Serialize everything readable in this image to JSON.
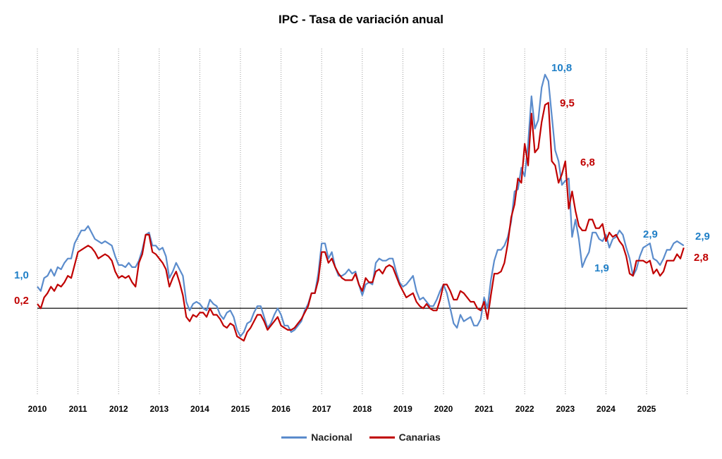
{
  "chart_data": {
    "type": "line",
    "title": "IPC - Tasa de variación anual",
    "xlabel": "",
    "ylabel": "",
    "x_start": "2010-01",
    "frequency": "monthly",
    "x_ticks": [
      "2010",
      "2011",
      "2012",
      "2013",
      "2014",
      "2015",
      "2016",
      "2017",
      "2018",
      "2019",
      "2020",
      "2021",
      "2022",
      "2023",
      "2024",
      "2025"
    ],
    "ylim": [
      -4,
      12
    ],
    "zero_line": true,
    "grid": "vertical dotted at years",
    "legend_position": "bottom",
    "series": [
      {
        "name": "Nacional",
        "color": "#5b8ccc",
        "values": [
          1.0,
          0.8,
          1.4,
          1.5,
          1.8,
          1.5,
          1.9,
          1.8,
          2.1,
          2.3,
          2.3,
          3.0,
          3.3,
          3.6,
          3.6,
          3.8,
          3.5,
          3.2,
          3.1,
          3.0,
          3.1,
          3.0,
          2.9,
          2.4,
          2.0,
          2.0,
          1.9,
          2.1,
          1.9,
          1.9,
          2.2,
          2.7,
          3.4,
          3.5,
          2.9,
          2.9,
          2.7,
          2.8,
          2.4,
          1.4,
          1.7,
          2.1,
          1.8,
          1.5,
          0.3,
          -0.1,
          0.2,
          0.3,
          0.2,
          0.0,
          -0.1,
          0.4,
          0.2,
          0.1,
          -0.3,
          -0.5,
          -0.2,
          -0.1,
          -0.4,
          -1.0,
          -1.3,
          -1.1,
          -0.7,
          -0.6,
          -0.2,
          0.1,
          0.1,
          -0.4,
          -0.9,
          -0.7,
          -0.3,
          0.0,
          -0.3,
          -0.8,
          -0.8,
          -1.1,
          -1.0,
          -0.8,
          -0.6,
          -0.1,
          0.2,
          0.7,
          0.7,
          1.6,
          3.0,
          3.0,
          2.3,
          2.6,
          1.9,
          1.5,
          1.5,
          1.6,
          1.8,
          1.6,
          1.7,
          1.1,
          0.6,
          1.1,
          1.2,
          1.1,
          2.1,
          2.3,
          2.2,
          2.2,
          2.3,
          2.3,
          1.7,
          1.2,
          1.0,
          1.1,
          1.3,
          1.5,
          0.8,
          0.4,
          0.5,
          0.3,
          0.1,
          0.1,
          0.4,
          0.8,
          1.1,
          0.7,
          0.0,
          -0.7,
          -0.9,
          -0.3,
          -0.6,
          -0.5,
          -0.4,
          -0.8,
          -0.8,
          -0.5,
          0.5,
          0.0,
          1.3,
          2.2,
          2.7,
          2.7,
          2.9,
          3.3,
          4.0,
          5.4,
          5.5,
          6.5,
          6.1,
          7.6,
          9.8,
          8.3,
          8.7,
          10.2,
          10.8,
          10.5,
          8.9,
          7.3,
          6.8,
          5.7,
          5.9,
          6.0,
          3.3,
          4.1,
          3.2,
          1.9,
          2.3,
          2.6,
          3.5,
          3.5,
          3.2,
          3.1,
          3.4,
          2.8,
          3.2,
          3.3,
          3.6,
          3.4,
          2.8,
          2.3,
          1.5,
          1.8,
          2.4,
          2.8,
          2.9,
          3.0,
          2.3,
          2.2,
          2.0,
          2.3,
          2.7,
          2.7,
          3.0,
          3.1,
          3.0,
          2.9
        ]
      },
      {
        "name": "Canarias",
        "color": "#c00000",
        "values": [
          0.2,
          0.0,
          0.5,
          0.7,
          1.0,
          0.8,
          1.1,
          1.0,
          1.2,
          1.5,
          1.4,
          2.0,
          2.6,
          2.7,
          2.8,
          2.9,
          2.8,
          2.6,
          2.3,
          2.4,
          2.5,
          2.4,
          2.2,
          1.7,
          1.4,
          1.5,
          1.4,
          1.5,
          1.2,
          1.0,
          2.1,
          2.5,
          3.4,
          3.4,
          2.6,
          2.5,
          2.3,
          2.1,
          1.8,
          1.0,
          1.4,
          1.7,
          1.2,
          0.6,
          -0.4,
          -0.6,
          -0.3,
          -0.4,
          -0.2,
          -0.2,
          -0.4,
          0.0,
          -0.3,
          -0.3,
          -0.5,
          -0.8,
          -0.9,
          -0.7,
          -0.8,
          -1.3,
          -1.4,
          -1.5,
          -1.1,
          -0.9,
          -0.6,
          -0.3,
          -0.3,
          -0.6,
          -1.0,
          -0.8,
          -0.6,
          -0.4,
          -0.8,
          -0.9,
          -1.0,
          -1.0,
          -0.9,
          -0.7,
          -0.5,
          -0.2,
          0.1,
          0.7,
          0.7,
          1.3,
          2.6,
          2.6,
          2.1,
          2.3,
          1.9,
          1.6,
          1.4,
          1.3,
          1.3,
          1.3,
          1.6,
          1.1,
          0.8,
          1.4,
          1.2,
          1.2,
          1.7,
          1.8,
          1.6,
          1.9,
          2.0,
          1.9,
          1.5,
          1.1,
          0.8,
          0.5,
          0.6,
          0.7,
          0.3,
          0.1,
          0.0,
          0.2,
          0.0,
          -0.1,
          -0.1,
          0.4,
          1.1,
          1.1,
          0.8,
          0.4,
          0.4,
          0.8,
          0.7,
          0.5,
          0.3,
          0.3,
          0.0,
          -0.1,
          0.3,
          -0.5,
          0.6,
          1.6,
          1.6,
          1.7,
          2.1,
          3.0,
          4.2,
          4.8,
          6.0,
          5.8,
          7.6,
          6.6,
          9.0,
          7.2,
          7.4,
          8.6,
          9.4,
          9.5,
          6.8,
          6.6,
          5.8,
          6.2,
          6.8,
          4.6,
          5.4,
          4.5,
          3.8,
          3.6,
          3.6,
          4.1,
          4.1,
          3.7,
          3.7,
          3.9,
          3.1,
          3.5,
          3.3,
          3.4,
          3.1,
          2.9,
          2.4,
          1.6,
          1.5,
          2.2,
          2.2,
          2.2,
          2.1,
          2.2,
          1.6,
          1.8,
          1.5,
          1.7,
          2.2,
          2.2,
          2.2,
          2.5,
          2.3,
          2.8
        ]
      }
    ],
    "annotations": {
      "nac_start": "1,0",
      "can_start": "0,2",
      "nac_peak": "10,8",
      "can_peak": "9,5",
      "can_2023": "6,8",
      "nac_low_2023": "1,9",
      "nac_2025": "2,9",
      "nac_end": "2,9",
      "can_end": "2,8"
    }
  }
}
